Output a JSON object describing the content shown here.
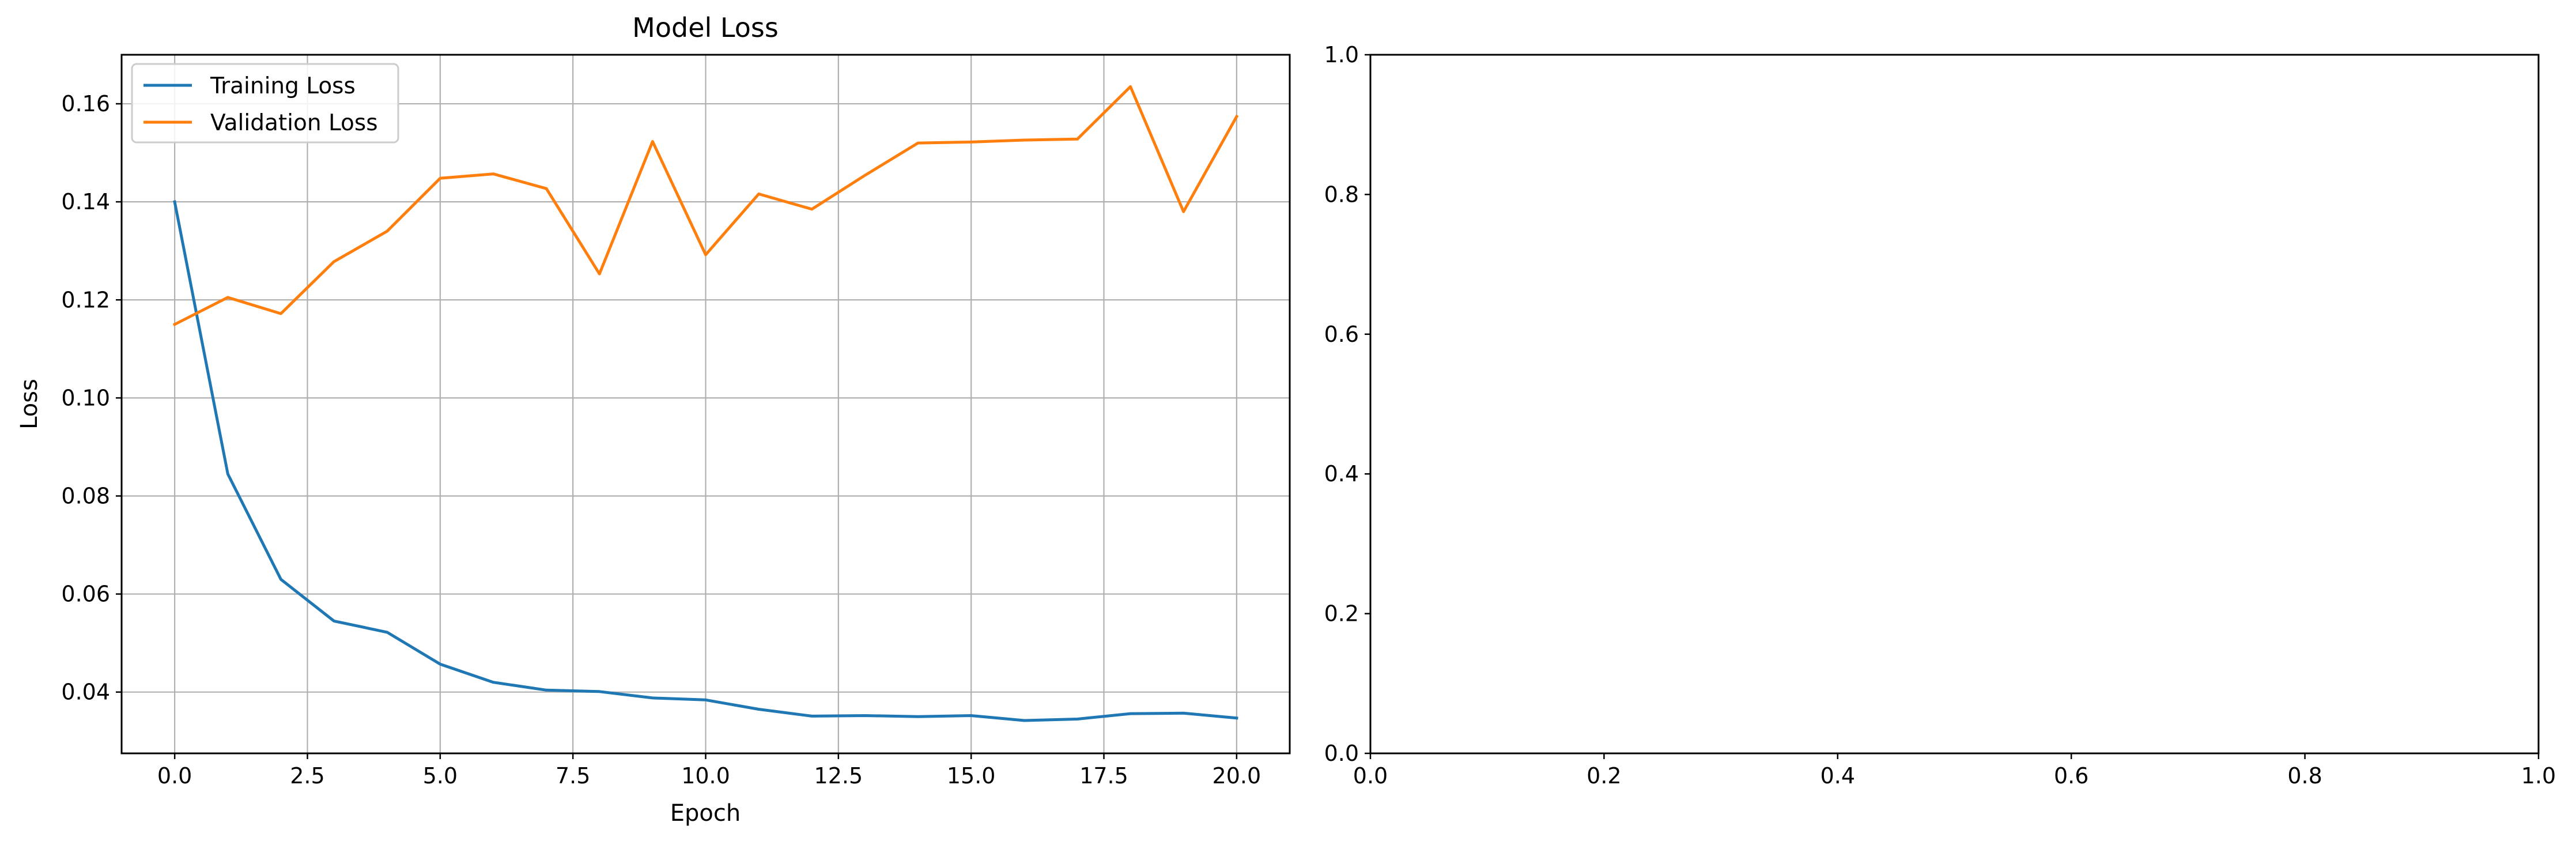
{
  "chart_data": [
    {
      "type": "line",
      "title": "Model Loss",
      "xlabel": "Epoch",
      "ylabel": "Loss",
      "xlim": [
        -1.0,
        21.0
      ],
      "ylim": [
        0.0275,
        0.17
      ],
      "x_ticks": [
        0.0,
        2.5,
        5.0,
        7.5,
        10.0,
        12.5,
        15.0,
        17.5,
        20.0
      ],
      "x_tick_labels": [
        "0.0",
        "2.5",
        "5.0",
        "7.5",
        "10.0",
        "12.5",
        "15.0",
        "17.5",
        "20.0"
      ],
      "y_ticks": [
        0.04,
        0.06,
        0.08,
        0.1,
        0.12,
        0.14,
        0.16
      ],
      "y_tick_labels": [
        "0.04",
        "0.06",
        "0.08",
        "0.10",
        "0.12",
        "0.14",
        "0.16"
      ],
      "grid": true,
      "legend_placement": "upper-left",
      "x": [
        0,
        1,
        2,
        3,
        4,
        5,
        6,
        7,
        8,
        9,
        10,
        11,
        12,
        13,
        14,
        15,
        16,
        17,
        18,
        19,
        20
      ],
      "series": [
        {
          "name": "Training Loss",
          "color": "#1f77b4",
          "values": [
            0.14,
            0.0845,
            0.063,
            0.0545,
            0.0522,
            0.0457,
            0.042,
            0.0404,
            0.0401,
            0.0388,
            0.0384,
            0.0365,
            0.0351,
            0.0352,
            0.035,
            0.0352,
            0.0342,
            0.0345,
            0.0356,
            0.0357,
            0.0347
          ]
        },
        {
          "name": "Validation Loss",
          "color": "#ff7f0e",
          "values": [
            0.115,
            0.1205,
            0.1172,
            0.1278,
            0.134,
            0.1448,
            0.1457,
            0.1427,
            0.1253,
            0.1523,
            0.1292,
            0.1416,
            0.1385,
            0.1454,
            0.152,
            0.1522,
            0.1526,
            0.1528,
            0.1635,
            0.138,
            0.1574
          ]
        }
      ]
    },
    {
      "type": "line",
      "title": "",
      "xlabel": "",
      "ylabel": "",
      "xlim": [
        0.0,
        1.0
      ],
      "ylim": [
        0.0,
        1.0
      ],
      "x_ticks": [
        0.0,
        0.2,
        0.4,
        0.6,
        0.8,
        1.0
      ],
      "x_tick_labels": [
        "0.0",
        "0.2",
        "0.4",
        "0.6",
        "0.8",
        "1.0"
      ],
      "y_ticks": [
        0.0,
        0.2,
        0.4,
        0.6,
        0.8,
        1.0
      ],
      "y_tick_labels": [
        "0.0",
        "0.2",
        "0.4",
        "0.6",
        "0.8",
        "1.0"
      ],
      "grid": false,
      "series": []
    }
  ]
}
